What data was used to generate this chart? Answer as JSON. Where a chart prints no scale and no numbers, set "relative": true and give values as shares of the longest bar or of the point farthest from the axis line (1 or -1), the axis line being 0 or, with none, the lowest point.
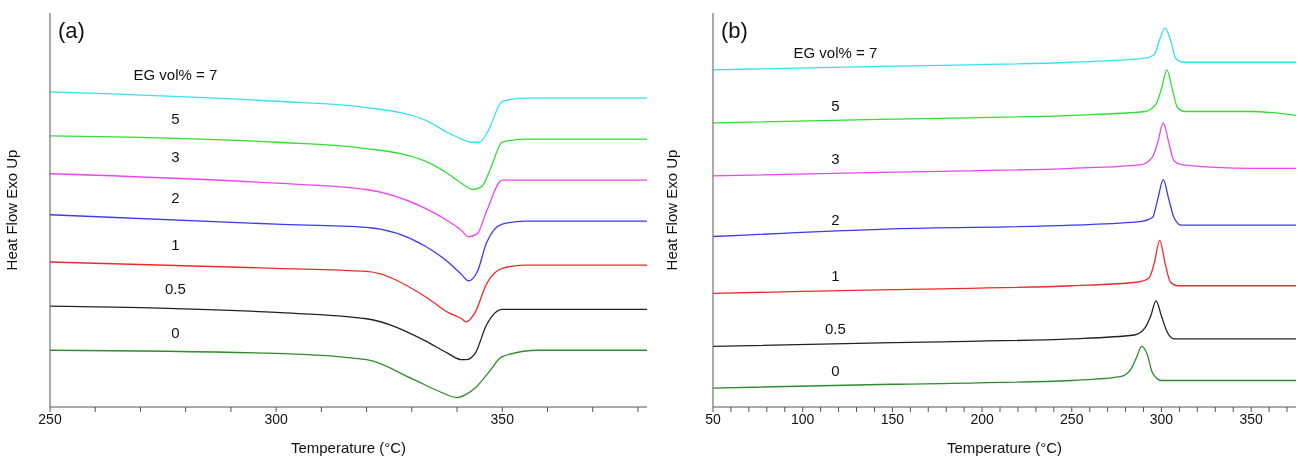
{
  "chart_data": [
    {
      "type": "line",
      "title": "(a)",
      "xlabel": "Temperature (°C)",
      "ylabel": "Heat Flow Exo Up",
      "relative": true,
      "xlim": [
        250,
        382
      ],
      "xticks": [
        250,
        {
          "value": 260,
          "label": null
        },
        {
          "value": 270,
          "label": null
        },
        {
          "value": 280,
          "label": null
        },
        {
          "value": 290,
          "label": null
        },
        300,
        {
          "value": 310,
          "label": null
        },
        {
          "value": 320,
          "label": null
        },
        {
          "value": 330,
          "label": null
        },
        {
          "value": 340,
          "label": null
        },
        350,
        {
          "value": 360,
          "label": null
        },
        {
          "value": 370,
          "label": null
        },
        {
          "value": 380,
          "label": null
        }
      ],
      "series": [
        {
          "name": "EG vol% = 7",
          "color": "#33e3ef",
          "x": [
            250,
            300,
            320,
            333,
            338,
            341,
            343,
            345,
            347,
            350,
            355,
            382
          ],
          "values": [
            1,
            0.97,
            0.95,
            0.91,
            0.87,
            0.85,
            0.84,
            0.84,
            0.88,
            0.97,
            0.98,
            0.98
          ]
        },
        {
          "name": "5",
          "color": "#33dd33",
          "x": [
            250,
            300,
            320,
            333,
            338,
            341,
            343.5,
            345.5,
            347.5,
            350,
            355,
            382
          ],
          "values": [
            0.86,
            0.84,
            0.82,
            0.78,
            0.74,
            0.71,
            0.69,
            0.7,
            0.76,
            0.84,
            0.85,
            0.85
          ]
        },
        {
          "name": "3",
          "color": "#ee44ee",
          "x": [
            250,
            300,
            320,
            333,
            338,
            341,
            342.5,
            344.5,
            346.5,
            350,
            355,
            382
          ],
          "values": [
            0.74,
            0.71,
            0.69,
            0.63,
            0.59,
            0.56,
            0.54,
            0.55,
            0.62,
            0.72,
            0.72,
            0.72
          ]
        },
        {
          "name": "2",
          "color": "#3a3aee",
          "x": [
            250,
            300,
            320,
            333,
            338,
            341,
            342.5,
            344.5,
            346.5,
            350,
            355,
            382
          ],
          "values": [
            0.61,
            0.58,
            0.57,
            0.51,
            0.46,
            0.42,
            0.4,
            0.43,
            0.52,
            0.58,
            0.59,
            0.59
          ]
        },
        {
          "name": "1",
          "color": "#ee2a2a",
          "x": [
            250,
            300,
            320,
            333,
            338,
            341,
            342,
            344,
            346.5,
            350,
            355,
            382
          ],
          "values": [
            0.46,
            0.44,
            0.43,
            0.35,
            0.3,
            0.28,
            0.27,
            0.3,
            0.39,
            0.44,
            0.45,
            0.45
          ]
        },
        {
          "name": "0.5",
          "color": "#222222",
          "x": [
            250,
            300,
            320,
            333,
            338,
            341,
            342,
            344,
            346.5,
            350,
            355,
            382
          ],
          "values": [
            0.32,
            0.3,
            0.28,
            0.21,
            0.17,
            0.15,
            0.15,
            0.17,
            0.26,
            0.31,
            0.31,
            0.31
          ]
        },
        {
          "name": "0",
          "color": "#2e8b2e",
          "x": [
            250,
            300,
            320,
            330,
            336,
            340,
            342,
            344,
            347,
            350,
            358,
            382
          ],
          "values": [
            0.18,
            0.17,
            0.15,
            0.09,
            0.05,
            0.03,
            0.04,
            0.06,
            0.11,
            0.16,
            0.18,
            0.18
          ]
        }
      ]
    },
    {
      "type": "line",
      "title": "(b)",
      "xlabel": "Temperature (°C)",
      "ylabel": "Heat Flow Exo Up",
      "relative": true,
      "xlim": [
        50,
        375
      ],
      "xticks": [
        50,
        {
          "value": 60,
          "label": null
        },
        {
          "value": 70,
          "label": null
        },
        {
          "value": 80,
          "label": null
        },
        {
          "value": 90,
          "label": null
        },
        100,
        {
          "value": 110,
          "label": null
        },
        {
          "value": 120,
          "label": null
        },
        {
          "value": 130,
          "label": null
        },
        {
          "value": 140,
          "label": null
        },
        150,
        {
          "value": 160,
          "label": null
        },
        {
          "value": 170,
          "label": null
        },
        {
          "value": 180,
          "label": null
        },
        {
          "value": 190,
          "label": null
        },
        200,
        {
          "value": 210,
          "label": null
        },
        {
          "value": 220,
          "label": null
        },
        {
          "value": 230,
          "label": null
        },
        {
          "value": 240,
          "label": null
        },
        250,
        {
          "value": 260,
          "label": null
        },
        {
          "value": 270,
          "label": null
        },
        {
          "value": 280,
          "label": null
        },
        {
          "value": 290,
          "label": null
        },
        300,
        {
          "value": 310,
          "label": null
        },
        {
          "value": 320,
          "label": null
        },
        {
          "value": 330,
          "label": null
        },
        {
          "value": 340,
          "label": null
        },
        350,
        {
          "value": 360,
          "label": null
        },
        {
          "value": 370,
          "label": null
        }
      ],
      "series": [
        {
          "name": "EG vol% = 7",
          "color": "#33e3ef",
          "x": [
            50,
            150,
            250,
            290,
            296,
            299,
            302,
            305,
            308,
            312,
            350,
            375
          ],
          "values": [
            0.89,
            0.9,
            0.91,
            0.92,
            0.93,
            0.97,
            1,
            0.97,
            0.92,
            0.91,
            0.91,
            0.91
          ]
        },
        {
          "name": "5",
          "color": "#33dd33",
          "x": [
            50,
            150,
            250,
            291,
            297,
            300,
            303,
            306,
            309,
            313,
            350,
            375
          ],
          "values": [
            0.75,
            0.76,
            0.77,
            0.78,
            0.8,
            0.84,
            0.89,
            0.84,
            0.79,
            0.78,
            0.78,
            0.77
          ]
        },
        {
          "name": "3",
          "color": "#ee44ee",
          "x": [
            50,
            150,
            250,
            289,
            295,
            298,
            301,
            304,
            307,
            311,
            350,
            375
          ],
          "values": [
            0.61,
            0.62,
            0.63,
            0.64,
            0.66,
            0.7,
            0.75,
            0.7,
            0.65,
            0.64,
            0.63,
            0.63
          ]
        },
        {
          "name": "2",
          "color": "#3a3aee",
          "x": [
            50,
            150,
            250,
            289,
            295,
            298,
            301,
            304,
            307,
            311,
            350,
            375
          ],
          "values": [
            0.45,
            0.47,
            0.48,
            0.49,
            0.5,
            0.55,
            0.6,
            0.55,
            0.5,
            0.48,
            0.48,
            0.48
          ]
        },
        {
          "name": "1",
          "color": "#ee2a2a",
          "x": [
            50,
            150,
            250,
            287,
            293,
            296,
            299,
            302,
            305,
            309,
            350,
            375
          ],
          "values": [
            0.3,
            0.31,
            0.32,
            0.33,
            0.34,
            0.38,
            0.44,
            0.38,
            0.33,
            0.32,
            0.32,
            0.32
          ]
        },
        {
          "name": "0.5",
          "color": "#222222",
          "x": [
            50,
            150,
            250,
            285,
            291,
            294,
            297,
            300,
            303,
            307,
            350,
            375
          ],
          "values": [
            0.16,
            0.17,
            0.18,
            0.19,
            0.21,
            0.24,
            0.28,
            0.24,
            0.2,
            0.18,
            0.18,
            0.18
          ]
        },
        {
          "name": "0",
          "color": "#2e8b2e",
          "x": [
            50,
            150,
            250,
            277,
            283,
            286,
            289,
            292,
            295,
            300,
            350,
            375
          ],
          "values": [
            0.05,
            0.06,
            0.07,
            0.08,
            0.1,
            0.13,
            0.16,
            0.14,
            0.09,
            0.07,
            0.07,
            0.07
          ]
        }
      ]
    }
  ]
}
